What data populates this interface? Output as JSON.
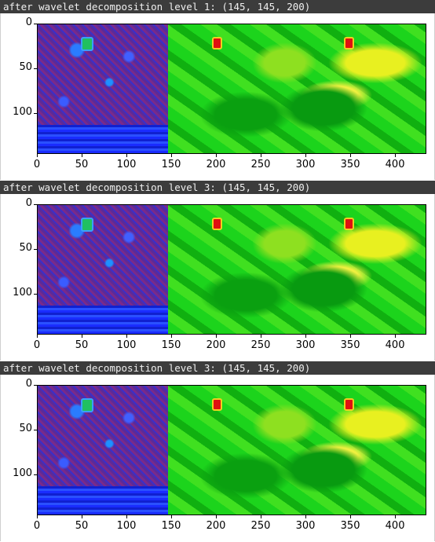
{
  "cells": [
    {
      "header": "after wavelet decomposition level 1: (145, 145, 200)",
      "chart": {
        "type": "image",
        "xticks": [
          "0",
          "50",
          "100",
          "150",
          "200",
          "250",
          "300",
          "350",
          "400"
        ],
        "yticks": [
          "0",
          "50",
          "100"
        ],
        "xlim": [
          0,
          435
        ],
        "ylim": [
          145,
          0
        ]
      }
    },
    {
      "header": "after wavelet decomposition level 3: (145, 145, 200)",
      "chart": {
        "type": "image",
        "xticks": [
          "0",
          "50",
          "100",
          "150",
          "200",
          "250",
          "300",
          "350",
          "400"
        ],
        "yticks": [
          "0",
          "50",
          "100"
        ],
        "xlim": [
          0,
          435
        ],
        "ylim": [
          145,
          0
        ]
      }
    },
    {
      "header": "after wavelet decomposition level 3: (145, 145, 200)",
      "chart": {
        "type": "image",
        "xticks": [
          "0",
          "50",
          "100",
          "150",
          "200",
          "250",
          "300",
          "350",
          "400"
        ],
        "yticks": [
          "0",
          "50",
          "100"
        ],
        "xlim": [
          0,
          435
        ],
        "ylim": [
          145,
          0
        ]
      }
    }
  ]
}
